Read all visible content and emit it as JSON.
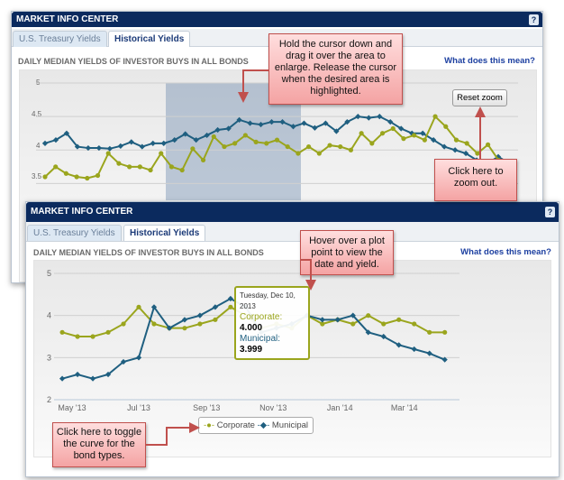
{
  "colors": {
    "corporate": "#9aa51d",
    "municipal": "#1f5f80",
    "header": "#0b2a5e",
    "callout_border": "#c0504d"
  },
  "top_panel": {
    "header": "MARKET INFO CENTER",
    "help": "?",
    "tabs": [
      {
        "label": "U.S. Treasury Yields",
        "active": false
      },
      {
        "label": "Historical Yields",
        "active": true
      }
    ],
    "title": "DAILY MEDIAN YIELDS OF INVESTOR BUYS IN ALL BONDS",
    "what_link": "What does this mean?",
    "reset_zoom": "Reset zoom",
    "y_ticks": [
      "5",
      "4.5",
      "4",
      "3.5"
    ]
  },
  "bottom_panel": {
    "header": "MARKET INFO CENTER",
    "help": "?",
    "tabs": [
      {
        "label": "U.S. Treasury Yields",
        "active": false
      },
      {
        "label": "Historical Yields",
        "active": true
      }
    ],
    "title": "DAILY MEDIAN YIELDS OF INVESTOR BUYS IN ALL BONDS",
    "what_link": "What does this mean?",
    "tooltip": {
      "date": "Tuesday, Dec 10, 2013",
      "corporate_label": "Corporate:",
      "corporate_value": "4.000",
      "municipal_label": "Municipal:",
      "municipal_value": "3.999"
    },
    "legend": [
      "Corporate",
      "Municipal"
    ]
  },
  "callouts": {
    "drag": "Hold the cursor down and drag it over the area to enlarge. Release the cursor when the desired area is highlighted.",
    "zoom_out": "Click here to zoom out.",
    "hover": "Hover over a plot point to view the date and yield.",
    "toggle": "Click here to toggle the curve for the bond types."
  },
  "chart_data": [
    {
      "type": "line",
      "title": "DAILY MEDIAN YIELDS OF INVESTOR BUYS IN ALL BONDS",
      "ylim": [
        3.25,
        5
      ],
      "y_ticks": [
        5,
        4.5,
        4,
        3.5
      ],
      "zoomed": true,
      "grid": true,
      "series": [
        {
          "name": "Municipal",
          "values": [
            4.1,
            4.15,
            4.25,
            4.05,
            4.03,
            4.03,
            4.02,
            4.06,
            4.12,
            4.05,
            4.1,
            4.1,
            4.15,
            4.24,
            4.15,
            4.22,
            4.3,
            4.32,
            4.45,
            4.4,
            4.38,
            4.42,
            4.42,
            4.35,
            4.4,
            4.33,
            4.4,
            4.28,
            4.42,
            4.5,
            4.48,
            4.5,
            4.42,
            4.32,
            4.25,
            4.25,
            4.15,
            4.05,
            4.0,
            3.95,
            3.85,
            3.8,
            3.9,
            3.8
          ]
        },
        {
          "name": "Corporate",
          "values": [
            3.6,
            3.75,
            3.65,
            3.6,
            3.58,
            3.62,
            3.95,
            3.8,
            3.75,
            3.75,
            3.7,
            3.95,
            3.75,
            3.7,
            4.02,
            3.85,
            4.2,
            4.05,
            4.1,
            4.22,
            4.12,
            4.1,
            4.15,
            4.05,
            3.95,
            4.05,
            3.95,
            4.07,
            4.05,
            4.0,
            4.25,
            4.1,
            4.25,
            4.32,
            4.17,
            4.22,
            4.15,
            4.5,
            4.35,
            4.15,
            4.1,
            3.95,
            4.08,
            3.85,
            3.7
          ]
        }
      ]
    },
    {
      "type": "line",
      "title": "DAILY MEDIAN YIELDS OF INVESTOR BUYS IN ALL BONDS",
      "ylim": [
        2,
        5
      ],
      "y_ticks": [
        5,
        4,
        3,
        2
      ],
      "grid": true,
      "legend": "bottom-center",
      "x_ticks": [
        "May '13",
        "Jul '13",
        "Sep '13",
        "Nov '13",
        "Jan '14",
        "Mar '14"
      ],
      "x": [
        "2013-04-22",
        "2013-05-06",
        "2013-05-20",
        "2013-06-03",
        "2013-06-17",
        "2013-07-01",
        "2013-07-15",
        "2013-07-29",
        "2013-08-12",
        "2013-08-26",
        "2013-09-09",
        "2013-09-23",
        "2013-10-07",
        "2013-10-21",
        "2013-11-04",
        "2013-11-18",
        "2013-12-02",
        "2013-12-16",
        "2013-12-30",
        "2014-01-13",
        "2014-01-27",
        "2014-02-10",
        "2014-02-24",
        "2014-03-10",
        "2014-03-24",
        "2014-04-07"
      ],
      "series": [
        {
          "name": "Corporate",
          "values": [
            3.6,
            3.5,
            3.5,
            3.6,
            3.8,
            4.2,
            3.8,
            3.7,
            3.7,
            3.8,
            3.9,
            4.2,
            4.0,
            3.7,
            3.8,
            3.7,
            4.0,
            3.8,
            3.9,
            3.8,
            4.0,
            3.8,
            3.9,
            3.8,
            3.6,
            3.6
          ]
        },
        {
          "name": "Municipal",
          "values": [
            2.5,
            2.6,
            2.5,
            2.6,
            2.9,
            3.0,
            4.2,
            3.7,
            3.9,
            4.0,
            4.2,
            4.4,
            4.2,
            3.6,
            3.7,
            3.8,
            4.0,
            3.9,
            3.9,
            4.0,
            3.6,
            3.5,
            3.3,
            3.2,
            3.1,
            2.95
          ]
        }
      ]
    }
  ]
}
